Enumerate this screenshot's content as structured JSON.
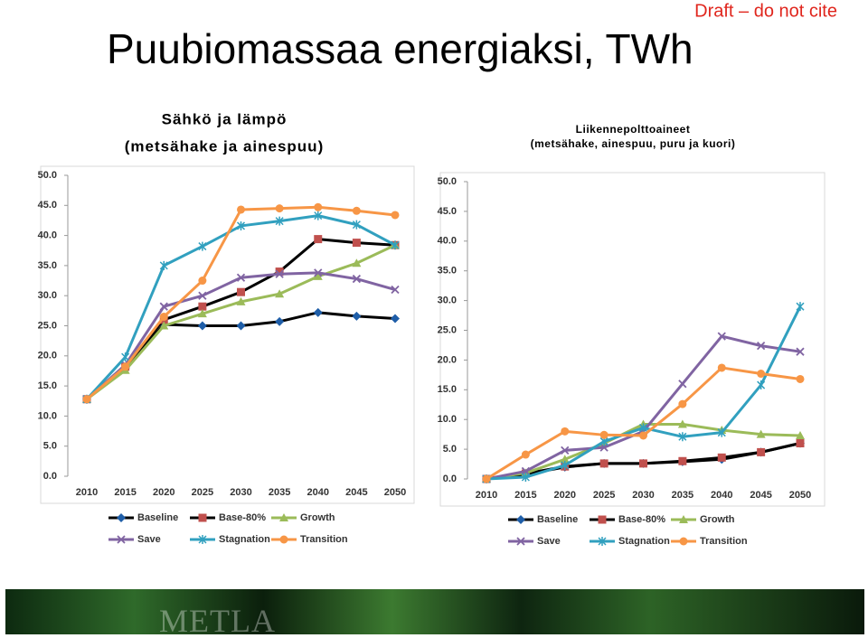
{
  "title": "Puubiomassaa energiaksi, TWh",
  "note": "Draft – do not cite",
  "footer": {
    "logo": "METLA"
  },
  "chart_data": [
    {
      "type": "line",
      "title": "Sähkö ja lämpö",
      "subtitle": "(metsähake ja ainespuu)",
      "categories": [
        "2010",
        "2015",
        "2020",
        "2025",
        "2030",
        "2035",
        "2040",
        "2045",
        "2050"
      ],
      "ylim": [
        0,
        50
      ],
      "yticks": [
        {
          "value": 0,
          "label": "0.0"
        },
        {
          "value": 5,
          "label": "5.0"
        },
        {
          "value": 10,
          "label": "10.0"
        },
        {
          "value": 15,
          "label": "15.0"
        },
        {
          "value": 20,
          "label": "20.0"
        },
        {
          "value": 25,
          "label": "25.0"
        },
        {
          "value": 30,
          "label": "30.0"
        },
        {
          "value": 35,
          "label": "35.0"
        },
        {
          "value": 40,
          "label": "40.0"
        },
        {
          "value": 45,
          "label": "45.0"
        },
        {
          "value": 50,
          "label": "50.0"
        }
      ],
      "series": [
        {
          "name": "Baseline",
          "color": "#000000",
          "marker_color": "#1f5ea8",
          "marker": "diamond",
          "values": [
            12.8,
            18.0,
            25.2,
            25.0,
            25.0,
            25.7,
            27.2,
            26.6,
            26.2
          ]
        },
        {
          "name": "Base-80%",
          "color": "#000000",
          "marker_color": "#c0504d",
          "marker": "square",
          "values": [
            12.8,
            18.2,
            26.0,
            28.2,
            30.6,
            34.0,
            39.4,
            38.8,
            38.4
          ]
        },
        {
          "name": "Growth",
          "color": "#9bbb59",
          "marker_color": "#9bbb59",
          "marker": "triangle",
          "values": [
            12.8,
            17.6,
            25.0,
            27.0,
            29.0,
            30.3,
            33.2,
            35.4,
            38.4
          ]
        },
        {
          "name": "Save",
          "color": "#8064a2",
          "marker_color": "#8064a2",
          "marker": "x",
          "values": [
            12.8,
            18.5,
            28.2,
            30.0,
            33.0,
            33.6,
            33.8,
            32.8,
            31.0
          ]
        },
        {
          "name": "Stagnation",
          "color": "#31a0bf",
          "marker_color": "#31a0bf",
          "marker": "star",
          "values": [
            12.8,
            19.8,
            35.0,
            38.2,
            41.6,
            42.4,
            43.3,
            41.8,
            38.4
          ]
        },
        {
          "name": "Transition",
          "color": "#f79646",
          "marker_color": "#f79646",
          "marker": "circle",
          "values": [
            12.8,
            18.2,
            26.5,
            32.5,
            44.3,
            44.5,
            44.7,
            44.1,
            43.4
          ]
        }
      ]
    },
    {
      "type": "line",
      "title": "Liikennepolttoaineet",
      "subtitle": "(metsähake, ainespuu, puru ja kuori)",
      "categories": [
        "2010",
        "2015",
        "2020",
        "2025",
        "2030",
        "2035",
        "2040",
        "2045",
        "2050"
      ],
      "ylim": [
        0,
        50
      ],
      "yticks": [
        {
          "value": 0,
          "label": "0.0"
        },
        {
          "value": 5,
          "label": "5.0"
        },
        {
          "value": 10,
          "label": "10.0"
        },
        {
          "value": 15,
          "label": "15.0"
        },
        {
          "value": 20,
          "label": "20.0"
        },
        {
          "value": 25,
          "label": "25.0"
        },
        {
          "value": 30,
          "label": "30.0"
        },
        {
          "value": 35,
          "label": "35.0"
        },
        {
          "value": 40,
          "label": "40.0"
        },
        {
          "value": 45,
          "label": "45.0"
        },
        {
          "value": 50,
          "label": "50.0"
        }
      ],
      "series": [
        {
          "name": "Baseline",
          "color": "#000000",
          "marker_color": "#1f5ea8",
          "marker": "diamond",
          "values": [
            0,
            0.8,
            2.0,
            2.6,
            2.6,
            2.9,
            3.3,
            4.5,
            6.0
          ]
        },
        {
          "name": "Base-80%",
          "color": "#000000",
          "marker_color": "#c0504d",
          "marker": "square",
          "values": [
            0,
            0.9,
            2.1,
            2.6,
            2.6,
            3.0,
            3.6,
            4.5,
            6.0
          ]
        },
        {
          "name": "Growth",
          "color": "#9bbb59",
          "marker_color": "#9bbb59",
          "marker": "triangle",
          "values": [
            0,
            1.0,
            3.3,
            6.0,
            9.2,
            9.2,
            8.2,
            7.5,
            7.3
          ]
        },
        {
          "name": "Save",
          "color": "#8064a2",
          "marker_color": "#8064a2",
          "marker": "x",
          "values": [
            0,
            1.3,
            4.8,
            5.3,
            8.0,
            16.0,
            24.0,
            22.4,
            21.4
          ]
        },
        {
          "name": "Stagnation",
          "color": "#31a0bf",
          "marker_color": "#31a0bf",
          "marker": "star",
          "values": [
            0,
            0.3,
            2.3,
            6.3,
            8.6,
            7.1,
            7.8,
            15.8,
            29.0
          ]
        },
        {
          "name": "Transition",
          "color": "#f79646",
          "marker_color": "#f79646",
          "marker": "circle",
          "values": [
            0,
            4.1,
            8.0,
            7.4,
            7.3,
            12.6,
            18.7,
            17.7,
            16.8
          ]
        }
      ]
    }
  ]
}
